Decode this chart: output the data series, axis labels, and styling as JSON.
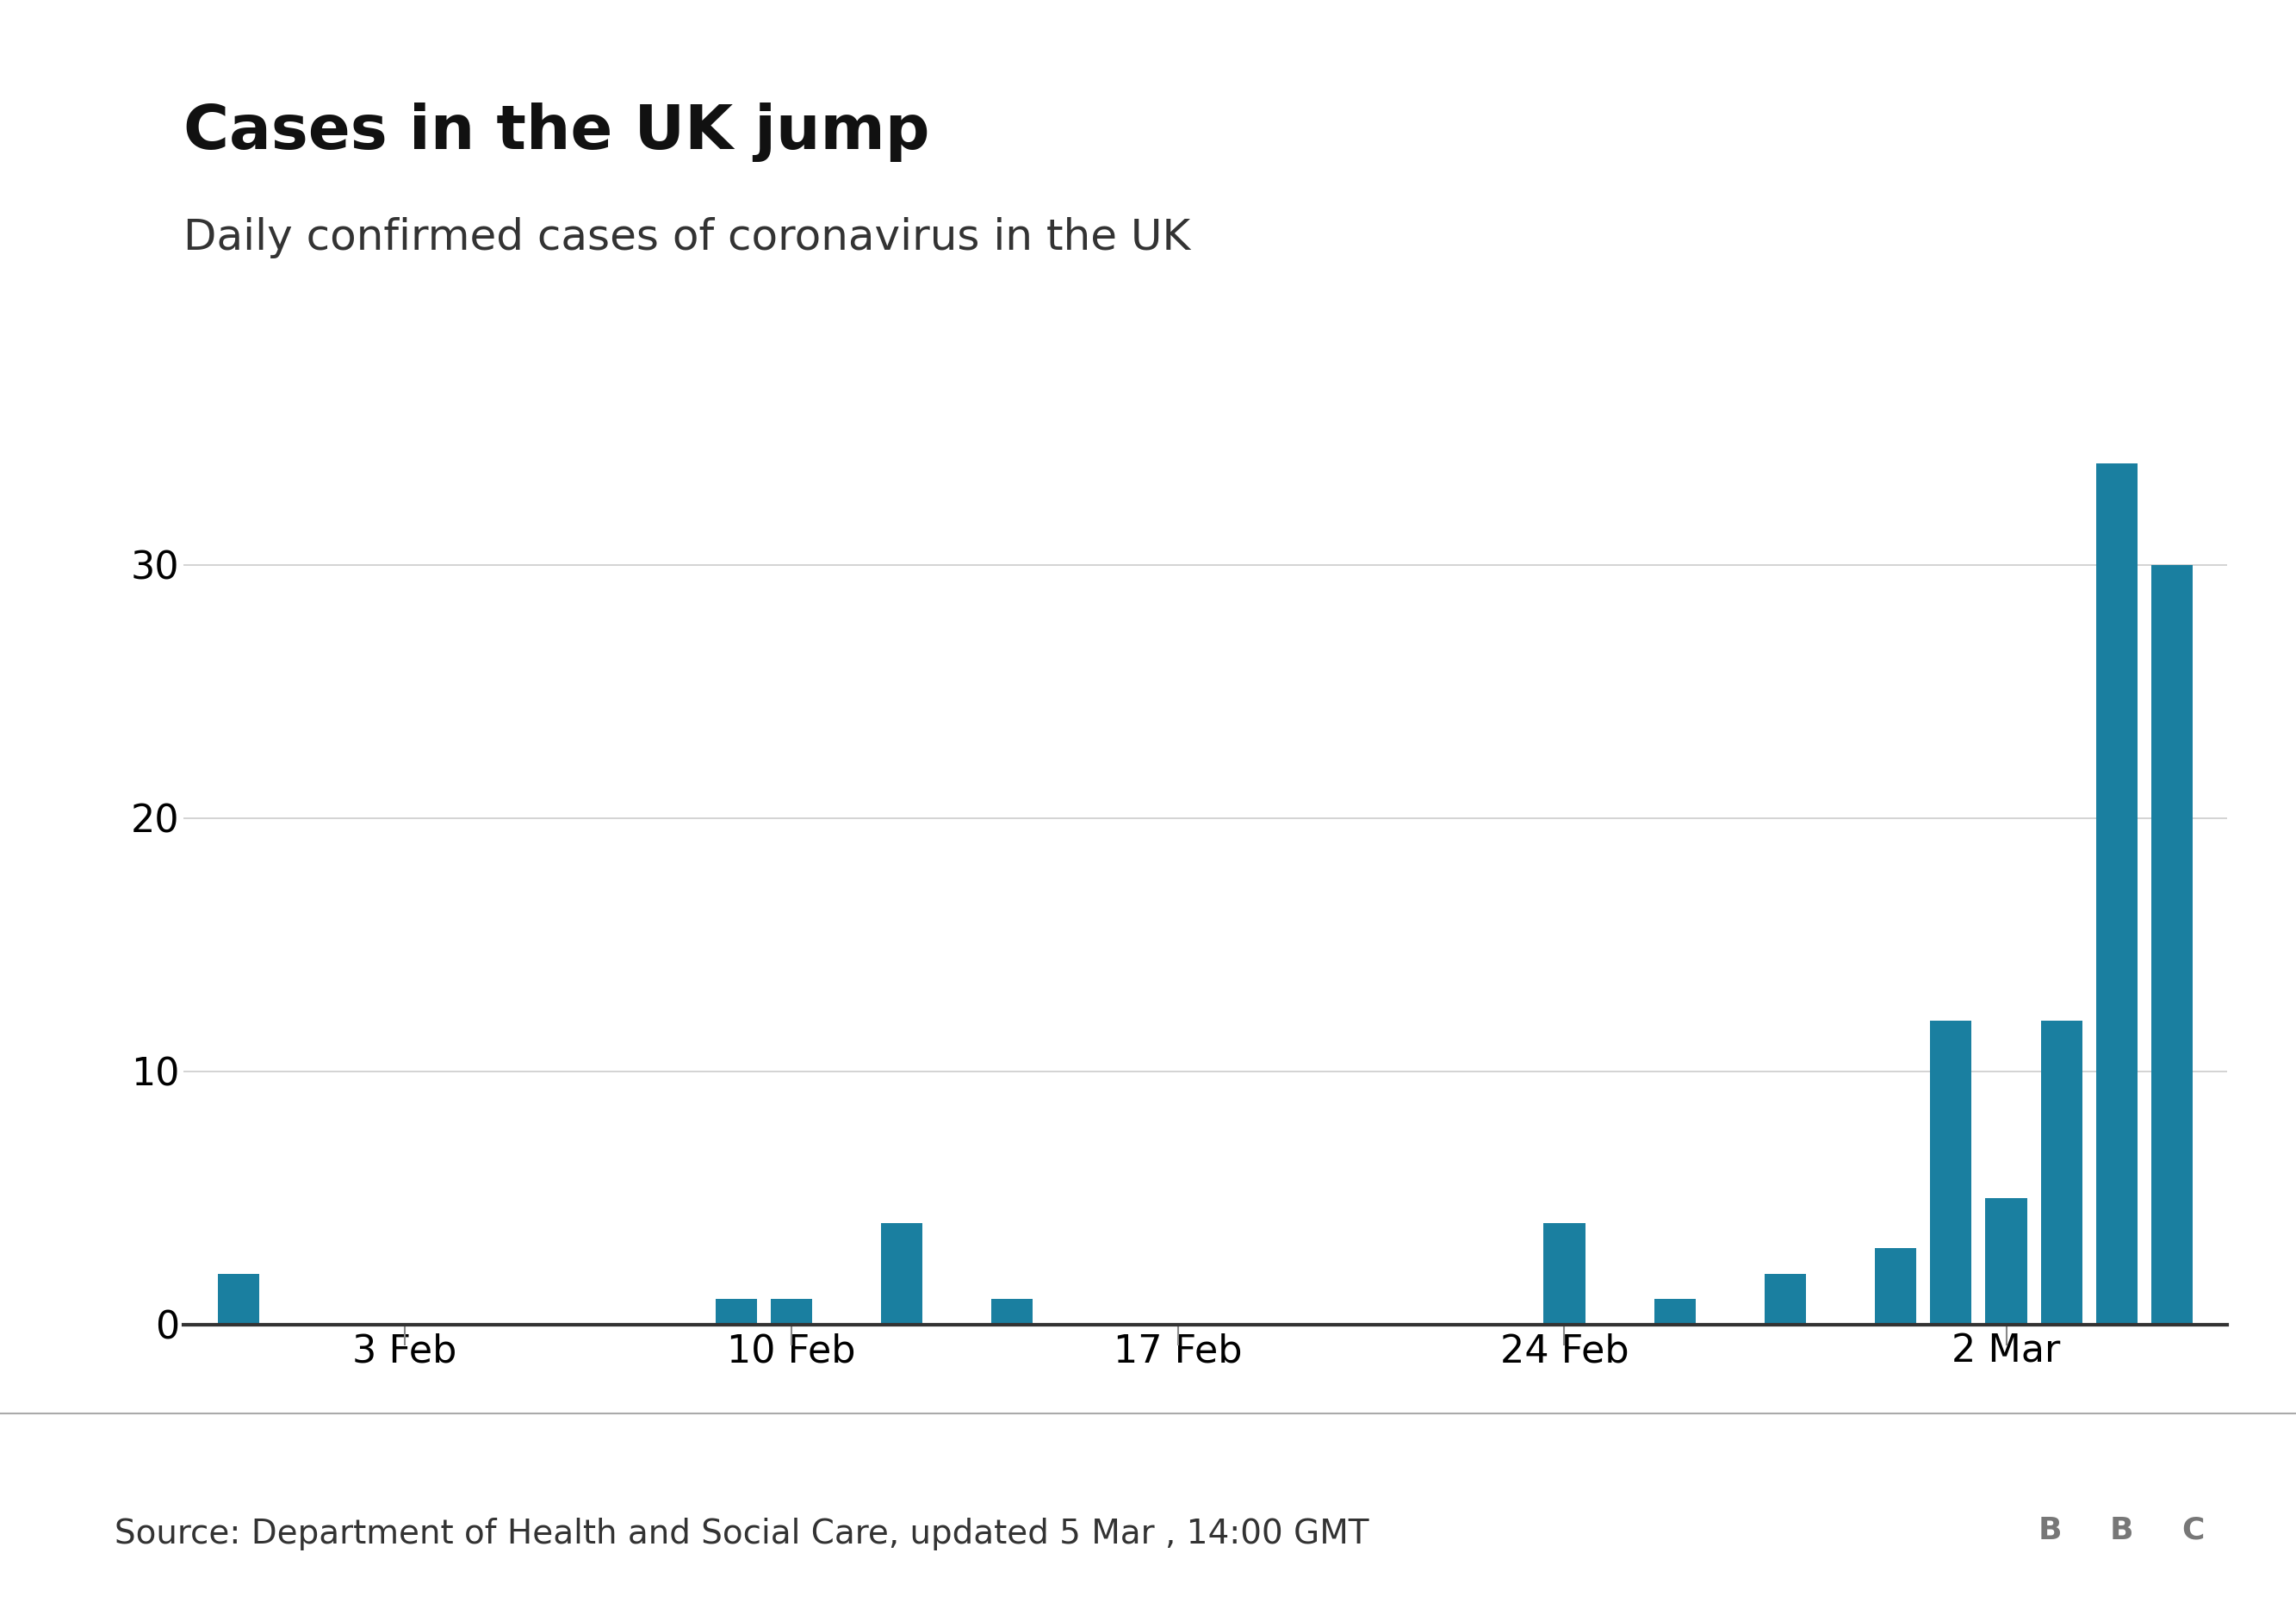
{
  "title": "Cases in the UK jump",
  "subtitle": "Daily confirmed cases of coronavirus in the UK",
  "source": "Source: Department of Health and Social Care, updated 5 Mar , 14:00 GMT",
  "bar_color": "#1a7fa0",
  "background_color": "#ffffff",
  "title_fontsize": 52,
  "subtitle_fontsize": 36,
  "ytick_fontsize": 32,
  "xtick_fontsize": 32,
  "source_fontsize": 28,
  "bbc_fontsize": 26,
  "ylim": [
    0,
    37
  ],
  "yticks": [
    0,
    10,
    20,
    30
  ],
  "values": [
    2,
    0,
    0,
    0,
    0,
    0,
    0,
    0,
    0,
    1,
    1,
    0,
    4,
    0,
    1,
    0,
    0,
    0,
    0,
    0,
    0,
    0,
    0,
    0,
    4,
    0,
    1,
    0,
    2,
    0,
    3,
    12,
    5,
    12,
    34,
    30
  ],
  "xtick_positions": [
    3,
    10,
    17,
    24,
    32
  ],
  "xtick_labels": [
    "3 Feb",
    "10 Feb",
    "17 Feb",
    "24 Feb",
    "2 Mar"
  ]
}
